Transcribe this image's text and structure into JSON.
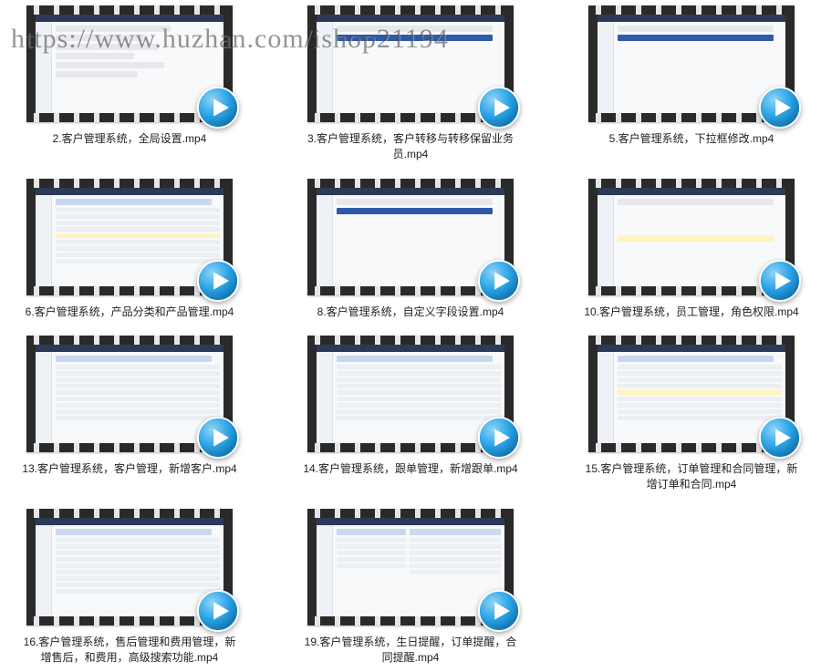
{
  "watermark": "https://www.huzhan.com/ishop21194",
  "play_icon": {
    "fill": "#2aa3e6",
    "arrow_fill": "#ffffff"
  },
  "thumb_style": {
    "film_border_color": "#2a2a2a",
    "sprocket_hole_color": "#e6e6e6",
    "topbar_color": "#2d3a57",
    "sidebar_color": "#eef1f6",
    "highlight_row_color": "#fff3bf",
    "blue_band_color": "#2f5aa8"
  },
  "videos": [
    {
      "caption": "2.客户管理系统，全局设置.mp4",
      "variant": "form"
    },
    {
      "caption": "3.客户管理系统，客户转移与转移保留业务员.mp4",
      "variant": "blank"
    },
    {
      "caption": "5.客户管理系统，下拉框修改.mp4",
      "variant": "blueband"
    },
    {
      "caption": "6.客户管理系统，产品分类和产品管理.mp4",
      "variant": "table_hl"
    },
    {
      "caption": "8.客户管理系统，自定义字段设置.mp4",
      "variant": "blank"
    },
    {
      "caption": "10.客户管理系统，员工管理，角色权限.mp4",
      "variant": "ylw_mid"
    },
    {
      "caption": "13.客户管理系统，客户管理，新增客户.mp4",
      "variant": "table"
    },
    {
      "caption": "14.客户管理系统，跟单管理，新增跟单.mp4",
      "variant": "table"
    },
    {
      "caption": "15.客户管理系统，订单管理和合同管理，新增订单和合同.mp4",
      "variant": "table_hl"
    },
    {
      "caption": "16.客户管理系统，售后管理和费用管理，新增售后，和费用，高级搜索功能.mp4",
      "variant": "table"
    },
    {
      "caption": "19.客户管理系统，生日提醒，订单提醒，合同提醒.mp4",
      "variant": "split"
    }
  ]
}
